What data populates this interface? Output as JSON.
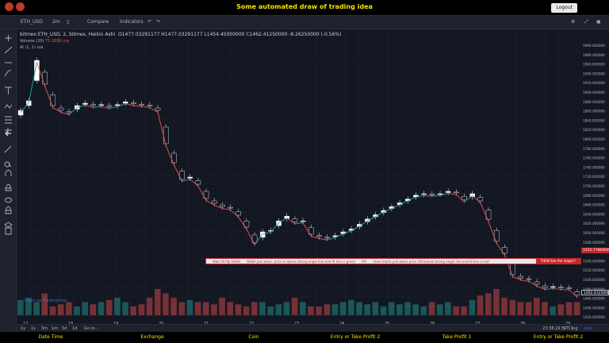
{
  "page": {
    "title": "Some automated draw of trading idea",
    "logout_label": "Logout",
    "accent": "#f5e400"
  },
  "toolbar": {
    "symbol": "ETH_USD",
    "interval": "2m",
    "compare_label": "Compare",
    "indicators_label": "Indicators"
  },
  "legend": {
    "main": "bitmex:ETH_USD, 2, bitmex, Heikin Ashi",
    "ohlc": "O1477.03291177  H1477.03291177  L1454.45000000  C1462.41250000  -8.26250000 (-0.56%)",
    "volume_label": "Volume (20)",
    "volume_value": "75.168K  n/a",
    "ai_label": "AI (1, 1)",
    "ai_value": "n/a"
  },
  "watermark": "Chart by TradingView",
  "banner": {
    "text1": "Wait till flip DASH",
    "text2": "DASH just when: price is above strong angle line and AI line is green",
    "text3": "OR",
    "text4": "draw shorts just when price still below strong angle line and AI line is red",
    "magic": "THEN See the magic!!"
  },
  "price_tags": [
    {
      "value": "1551.77804046",
      "color": "#c62828"
    },
    {
      "value": "1462.4125000",
      "color": "#131722"
    }
  ],
  "y_ticks": [
    "1990.000000",
    "1980.000000",
    "1960.000000",
    "1940.000000",
    "1920.000000",
    "1900.000000",
    "1880.000000",
    "1860.000000",
    "1840.000000",
    "1820.000000",
    "1800.000000",
    "1780.000000",
    "1760.000000",
    "1740.000000",
    "1720.000000",
    "1700.000000",
    "1680.000000",
    "1660.000000",
    "1640.000000",
    "1620.000000",
    "1600.000000",
    "1580.000000",
    "1560.000000",
    "1540.000000",
    "1520.000000",
    "1500.000000",
    "1480.000000",
    "1460.000000",
    "1440.000000",
    "1420.000000"
  ],
  "x_labels": [
    "17",
    "18",
    "19",
    "20",
    "21",
    "22",
    "23",
    "24",
    "25",
    "26",
    "27",
    "28",
    "29",
    "10:00"
  ],
  "ranges": [
    "1y",
    "1y",
    "3m",
    "1m",
    "5d",
    "1d",
    "Go to..."
  ],
  "clock": "23:38:29 (UTC)",
  "options": [
    "%",
    "log",
    "auto"
  ],
  "footer": [
    "Date Time",
    "Exchange",
    "Coin",
    "Entry or Take Profit 2",
    "Take Profit 1",
    "Entry or Take Profit 2"
  ],
  "chart_data": {
    "type": "candlestick",
    "symbol": "ETH_USD",
    "close": [
      1850,
      1870,
      1955,
      1905,
      1860,
      1850,
      1845,
      1860,
      1865,
      1860,
      1862,
      1858,
      1862,
      1868,
      1864,
      1862,
      1860,
      1850,
      1780,
      1740,
      1705,
      1710,
      1695,
      1665,
      1655,
      1648,
      1645,
      1630,
      1605,
      1572,
      1595,
      1598,
      1618,
      1628,
      1616,
      1618,
      1590,
      1585,
      1582,
      1587,
      1595,
      1601,
      1611,
      1622,
      1631,
      1640,
      1648,
      1656,
      1664,
      1672,
      1675,
      1674,
      1675,
      1680,
      1677,
      1662,
      1675,
      1660,
      1621,
      1575,
      1550,
      1505,
      1498,
      1495,
      1485,
      1478,
      1480,
      1478,
      1477,
      1462
    ],
    "volume_relative": [
      0.35,
      0.4,
      0.3,
      0.5,
      0.2,
      0.25,
      0.3,
      0.2,
      0.3,
      0.25,
      0.3,
      0.35,
      0.4,
      0.3,
      0.2,
      0.25,
      0.4,
      0.6,
      0.5,
      0.4,
      0.3,
      0.35,
      0.3,
      0.3,
      0.25,
      0.4,
      0.3,
      0.25,
      0.2,
      0.3,
      0.3,
      0.2,
      0.25,
      0.3,
      0.4,
      0.3,
      0.2,
      0.2,
      0.25,
      0.25,
      0.3,
      0.35,
      0.3,
      0.25,
      0.3,
      0.2,
      0.3,
      0.25,
      0.3,
      0.25,
      0.2,
      0.3,
      0.25,
      0.3,
      0.2,
      0.2,
      0.35,
      0.45,
      0.5,
      0.6,
      0.4,
      0.35,
      0.3,
      0.3,
      0.4,
      0.3,
      0.2,
      0.25,
      0.3,
      0.3
    ],
    "ylim": [
      1420,
      1990
    ],
    "grid": true
  }
}
